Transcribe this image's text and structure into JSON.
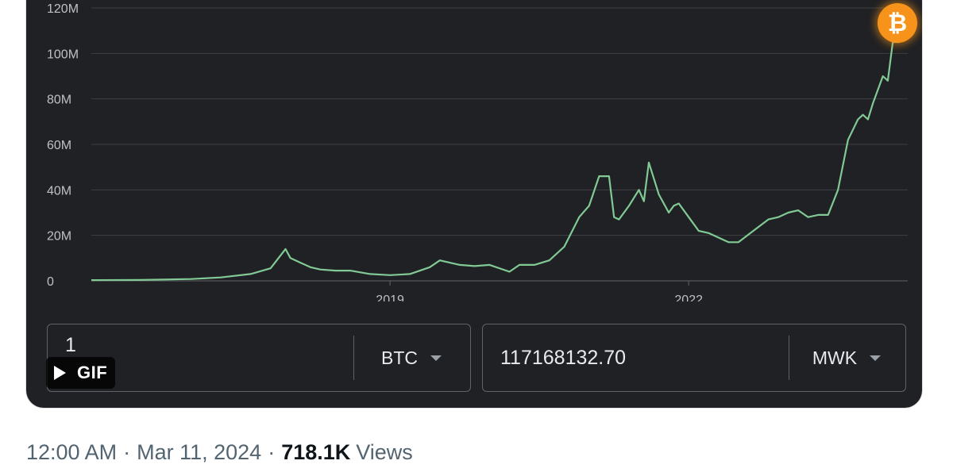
{
  "chart_data": {
    "type": "line",
    "title": "",
    "xlabel": "",
    "ylabel": "",
    "x_ticks": [
      "2019",
      "2022"
    ],
    "y_ticks": [
      "0",
      "20M",
      "40M",
      "60M",
      "80M",
      "100M",
      "120M"
    ],
    "y_tick_values": [
      0,
      20000000,
      40000000,
      60000000,
      80000000,
      100000000,
      120000000
    ],
    "ylim": [
      0,
      120000000
    ],
    "xlim": [
      2016.0,
      2024.2
    ],
    "grid": true,
    "series": [
      {
        "color": "#81c995",
        "x": [
          2016.0,
          2016.5,
          2017.0,
          2017.3,
          2017.6,
          2017.8,
          2017.95,
          2018.0,
          2018.1,
          2018.2,
          2018.3,
          2018.45,
          2018.6,
          2018.8,
          2019.0,
          2019.2,
          2019.4,
          2019.5,
          2019.6,
          2019.7,
          2019.85,
          2020.0,
          2020.2,
          2020.3,
          2020.45,
          2020.6,
          2020.75,
          2020.9,
          2021.0,
          2021.1,
          2021.2,
          2021.25,
          2021.3,
          2021.4,
          2021.5,
          2021.55,
          2021.6,
          2021.7,
          2021.8,
          2021.85,
          2021.9,
          2022.0,
          2022.1,
          2022.2,
          2022.3,
          2022.4,
          2022.45,
          2022.5,
          2022.65,
          2022.8,
          2022.9,
          2023.0,
          2023.1,
          2023.2,
          2023.3,
          2023.4,
          2023.5,
          2023.6,
          2023.7,
          2023.75,
          2023.8,
          2023.85,
          2023.95,
          2024.0,
          2024.05,
          2024.1,
          2024.12
        ],
        "y": [
          0.3,
          0.4,
          0.8,
          1.5,
          3,
          5.5,
          14,
          10,
          8,
          6,
          5,
          4.5,
          4.5,
          3,
          2.5,
          3,
          6,
          9,
          8,
          7,
          6.5,
          7,
          4,
          7,
          7,
          9,
          15,
          28,
          33,
          46,
          46,
          28,
          27,
          33,
          40,
          35,
          52,
          38,
          30,
          33,
          34,
          28,
          22,
          21,
          19,
          17,
          17,
          17,
          22,
          27,
          28,
          30,
          31,
          28,
          29,
          29,
          40,
          62,
          71,
          73,
          71,
          78,
          90,
          88,
          105,
          105,
          105
        ]
      }
    ]
  },
  "converter": {
    "from_amount": "1",
    "from_currency": "BTC",
    "to_amount": "117168132.70",
    "to_currency": "MWK"
  },
  "gif_label": "GIF",
  "footer": {
    "time": "12:00 AM",
    "separator": "·",
    "date": "Mar 11, 2024",
    "views_count": "718.1K",
    "views_label": "Views"
  },
  "icons": {
    "btc_icon_glyph": "₿",
    "btc_color": "#f7931a",
    "line_color": "#81c995",
    "card_color": "#202124"
  }
}
